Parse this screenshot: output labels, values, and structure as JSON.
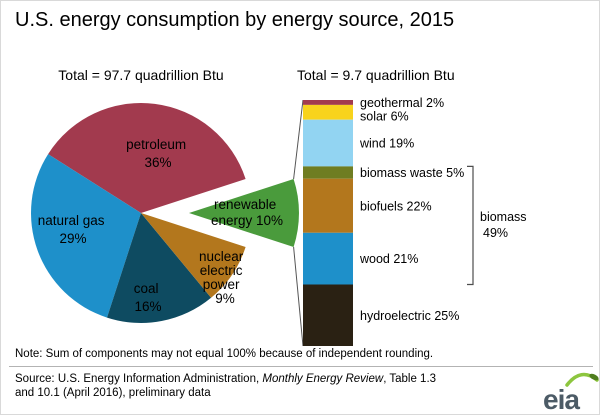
{
  "title": "U.S. energy consumption by energy source, 2015",
  "note": "Note: Sum of components may not equal 100% because of independent rounding.",
  "source": {
    "line1_prefix": "Source: U.S. Energy Information Administration, ",
    "line1_italic": "Monthly Energy Review",
    "line1_suffix": ", Table 1.3",
    "line2": "and 10.1 (April 2016), preliminary data"
  },
  "logo_text": "eia",
  "chart_data": [
    {
      "type": "pie",
      "title": "Total = 97.7 quadrillion Btu",
      "total_quadrillion_btu": 97.7,
      "unit": "percent of total",
      "slices": [
        {
          "name": "petroleum",
          "value": 36,
          "color": "#a23a4e",
          "lines": [
            "petroleum",
            "36%"
          ]
        },
        {
          "name": "natural gas",
          "value": 29,
          "color": "#1e90ca",
          "lines": [
            "natural gas",
            "29%"
          ]
        },
        {
          "name": "coal",
          "value": 16,
          "color": "#0e4b61",
          "lines": [
            "coal",
            "16%"
          ]
        },
        {
          "name": "nuclear electric power",
          "value": 9,
          "color": "#b3771d",
          "lines": [
            "nuclear",
            "electric",
            "power",
            "9%"
          ]
        },
        {
          "name": "renewable energy",
          "value": 10,
          "color": "#4a9b3c",
          "lines": [
            "renewable",
            "energy 10%"
          ],
          "exploded": true
        }
      ]
    },
    {
      "type": "stacked-bar",
      "title": "Total = 9.7 quadrillion Btu",
      "total_quadrillion_btu": 9.7,
      "unit": "percent of renewable total",
      "segments": [
        {
          "name": "geothermal",
          "value": 2,
          "color": "#a23a4e",
          "label": "geothermal 2%"
        },
        {
          "name": "solar",
          "value": 6,
          "color": "#f8d31c",
          "label": "solar 6%"
        },
        {
          "name": "wind",
          "value": 19,
          "color": "#92d4f2",
          "label": "wind 19%"
        },
        {
          "name": "biomass waste",
          "value": 5,
          "color": "#6f7d22",
          "label": "biomass waste 5%"
        },
        {
          "name": "biofuels",
          "value": 22,
          "color": "#b3771d",
          "label": "biofuels 22%"
        },
        {
          "name": "wood",
          "value": 21,
          "color": "#1e90ca",
          "label": "wood 21%"
        },
        {
          "name": "hydroelectric",
          "value": 25,
          "color": "#2a2113",
          "label": "hydroelectric 25%"
        }
      ],
      "bracket": {
        "lines": [
          "biomass",
          "49%"
        ],
        "value": 49,
        "covers": [
          "biomass waste",
          "biofuels",
          "wood"
        ]
      }
    }
  ]
}
